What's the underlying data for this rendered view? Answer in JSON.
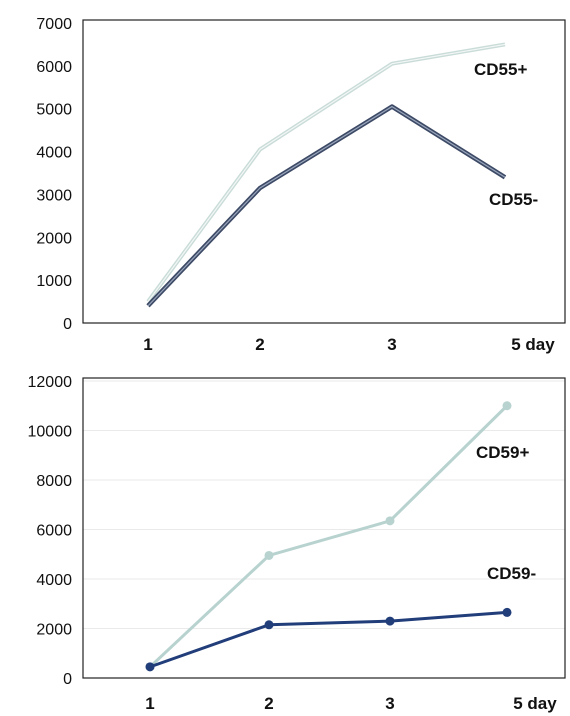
{
  "chart_data": [
    {
      "type": "line",
      "title": "",
      "xlabel": "",
      "ylabel": "",
      "categories": [
        "1",
        "2",
        "3",
        "5 day"
      ],
      "ylim": [
        0,
        7000
      ],
      "yticks": [
        0,
        1000,
        2000,
        3000,
        4000,
        5000,
        6000,
        7000
      ],
      "grid": false,
      "markers": false,
      "series": [
        {
          "name": "CD55+",
          "values": [
            500,
            4050,
            6050,
            6500
          ],
          "color": "#c9dcd8"
        },
        {
          "name": "CD55-",
          "values": [
            400,
            3150,
            5050,
            3400
          ],
          "color": "#3d4a66"
        }
      ]
    },
    {
      "type": "line",
      "title": "",
      "xlabel": "",
      "ylabel": "",
      "categories": [
        "1",
        "2",
        "3",
        "5 day"
      ],
      "ylim": [
        0,
        12000
      ],
      "yticks": [
        0,
        2000,
        4000,
        6000,
        8000,
        10000,
        12000
      ],
      "grid": true,
      "markers": true,
      "series": [
        {
          "name": "CD59+",
          "values": [
            450,
            4950,
            6350,
            11000
          ],
          "color": "#b8d3cf"
        },
        {
          "name": "CD59-",
          "values": [
            450,
            2150,
            2300,
            2650
          ],
          "color": "#223e7a"
        }
      ]
    }
  ]
}
